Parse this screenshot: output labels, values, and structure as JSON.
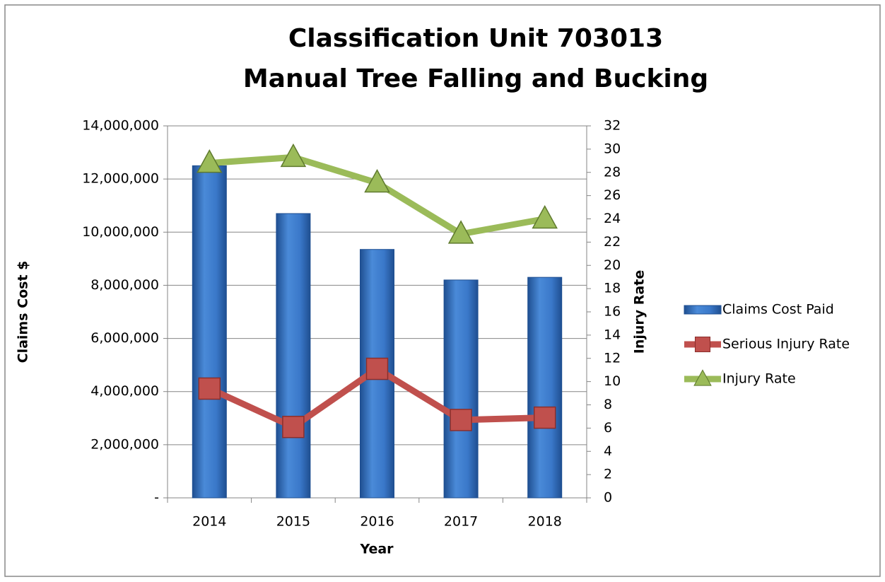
{
  "chart_data": {
    "type": "bar",
    "title": [
      "Classification Unit 703013",
      "Manual Tree Falling and Bucking"
    ],
    "x_label": "Year",
    "y_label": "Claims Cost $",
    "y2_label": "Injury Rate",
    "categories": [
      "2014",
      "2015",
      "2016",
      "2017",
      "2018"
    ],
    "series": [
      {
        "name": "Claims Cost Paid",
        "type": "bar",
        "color": "#3a78c9",
        "values": [
          12500000,
          10700000,
          9350000,
          8200000,
          8300000
        ]
      },
      {
        "name": "Serious Injury Rate",
        "type": "line",
        "marker": "square",
        "axis": "y2",
        "color": "#c0504d",
        "values": [
          9.4,
          6.1,
          11.1,
          6.7,
          6.9
        ]
      },
      {
        "name": "Injury Rate",
        "type": "line",
        "marker": "triangle",
        "axis": "y2",
        "color": "#9bbb59",
        "values": [
          28.8,
          29.3,
          27.1,
          22.7,
          24.0
        ]
      }
    ],
    "ylim": [
      0,
      14000000
    ],
    "yticks": [
      {
        "value": 0,
        "label": "-"
      },
      {
        "value": 2000000,
        "label": "2,000,000"
      },
      {
        "value": 4000000,
        "label": "4,000,000"
      },
      {
        "value": 6000000,
        "label": "6,000,000"
      },
      {
        "value": 8000000,
        "label": "8,000,000"
      },
      {
        "value": 10000000,
        "label": "10,000,000"
      },
      {
        "value": 12000000,
        "label": "12,000,000"
      },
      {
        "value": 14000000,
        "label": "14,000,000"
      }
    ],
    "y2lim": [
      0,
      32
    ],
    "y2ticks": [
      0,
      2,
      4,
      6,
      8,
      10,
      12,
      14,
      16,
      18,
      20,
      22,
      24,
      26,
      28,
      30,
      32
    ],
    "grid": true,
    "legend": "right"
  }
}
